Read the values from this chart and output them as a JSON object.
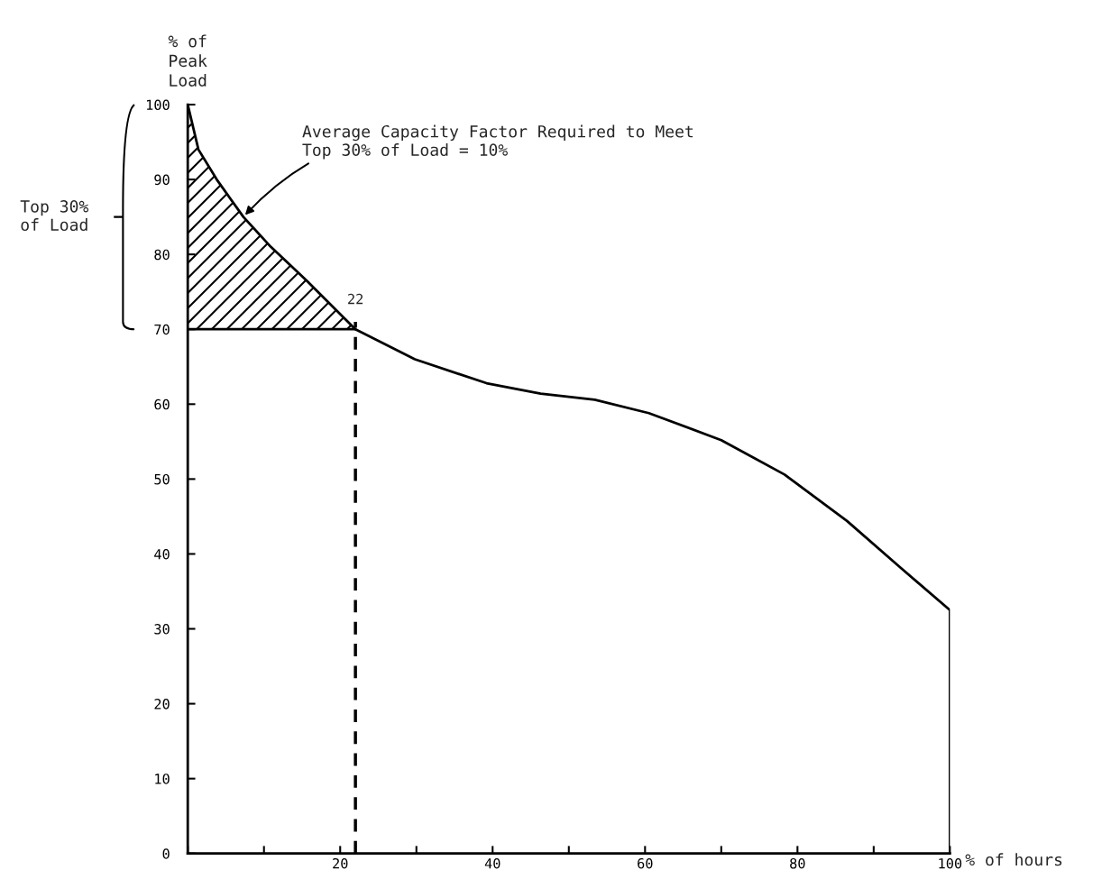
{
  "chart_data": {
    "type": "line",
    "xlabel": "% of hours",
    "ylabel": "% of\nPeak\nLoad",
    "series": [
      {
        "color": "#000000",
        "x": [
          0,
          1.4,
          3.8,
          7.3,
          10.9,
          15.6,
          22,
          29.8,
          39.2,
          46.3,
          53.4,
          60.5,
          70,
          78.3,
          86.5,
          93.6,
          100,
          100
        ],
        "values": [
          100,
          94,
          90,
          85,
          81,
          76.5,
          70,
          66,
          62.8,
          61.4,
          60.6,
          58.8,
          55.2,
          50.6,
          44.4,
          38.1,
          32.5,
          0
        ]
      },
      {
        "color": "#000000",
        "x": [
          0,
          22
        ],
        "values": [
          70,
          70
        ]
      },
      {
        "type": "area",
        "color": "#000000",
        "x": [
          0,
          1.4,
          3.8,
          7.3,
          10.9,
          15.6,
          22
        ],
        "values": [
          100,
          94,
          90,
          85,
          81,
          76.5,
          70
        ]
      }
    ],
    "ref_lines": [
      {
        "axis": "x",
        "value": 22,
        "label": "22",
        "line_style": "dashed",
        "color": "#000000"
      }
    ],
    "annotations": [
      {
        "text": "Average Capacity Factor Required to Meet\nTop 30% of Load = 10%",
        "x": 7.3,
        "y": 85
      },
      "Top 30%\nof Load"
    ],
    "xlim": [
      0,
      100
    ],
    "ylim": [
      0,
      100
    ],
    "xticks": [
      {
        "value": 0,
        "label": null
      },
      {
        "value": 10,
        "label": null
      },
      20,
      {
        "value": 30,
        "label": null
      },
      40,
      {
        "value": 50,
        "label": null
      },
      60,
      {
        "value": 70,
        "label": null
      },
      80,
      {
        "value": 90,
        "label": null
      },
      100
    ],
    "yticks": [
      0,
      10,
      20,
      30,
      40,
      50,
      60,
      70,
      80,
      90,
      100
    ],
    "grid": false,
    "legend": false
  }
}
